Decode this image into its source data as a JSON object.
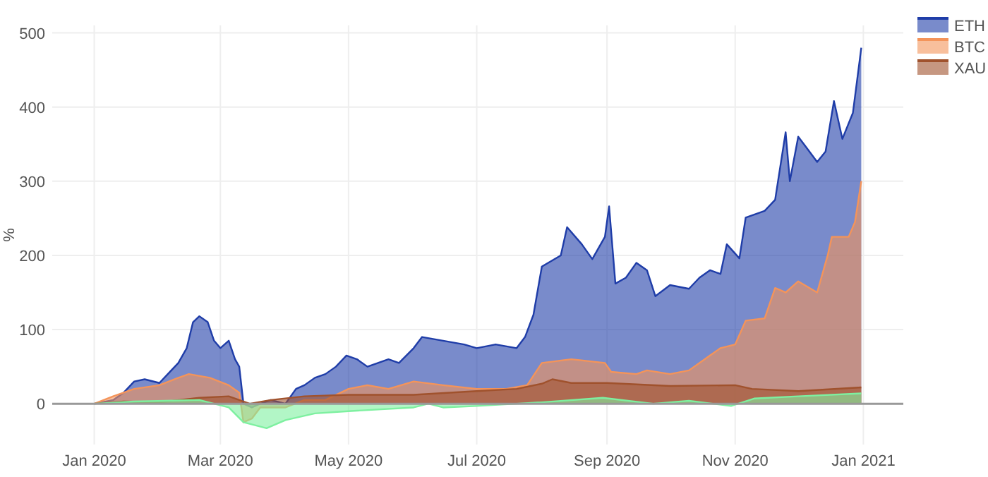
{
  "chart_data": {
    "type": "area",
    "ylabel": "%",
    "xlim": [
      "2019-12-12",
      "2021-01-20"
    ],
    "ylim": [
      -55,
      510
    ],
    "xticks": [
      {
        "value": "2020-01-01",
        "label": "Jan 2020"
      },
      {
        "value": "2020-03-01",
        "label": "Mar 2020"
      },
      {
        "value": "2020-05-01",
        "label": "May 2020"
      },
      {
        "value": "2020-07-01",
        "label": "Jul 2020"
      },
      {
        "value": "2020-09-01",
        "label": "Sep 2020"
      },
      {
        "value": "2020-11-01",
        "label": "Nov 2020"
      },
      {
        "value": "2021-01-01",
        "label": "Jan 2021"
      }
    ],
    "yticks": [
      0,
      100,
      200,
      300,
      400,
      500
    ],
    "grid": true,
    "legend": "top right",
    "line_style": "solid",
    "series": [
      {
        "name": "ETH",
        "color": "#1f3da8",
        "x": [
          "2020-01-01",
          "2020-01-10",
          "2020-01-15",
          "2020-01-20",
          "2020-01-25",
          "2020-02-01",
          "2020-02-05",
          "2020-02-10",
          "2020-02-14",
          "2020-02-17",
          "2020-02-20",
          "2020-02-24",
          "2020-02-27",
          "2020-03-01",
          "2020-03-05",
          "2020-03-08",
          "2020-03-10",
          "2020-03-12",
          "2020-03-16",
          "2020-03-20",
          "2020-03-25",
          "2020-04-01",
          "2020-04-06",
          "2020-04-10",
          "2020-04-15",
          "2020-04-20",
          "2020-04-25",
          "2020-04-30",
          "2020-05-05",
          "2020-05-10",
          "2020-05-15",
          "2020-05-20",
          "2020-05-25",
          "2020-06-01",
          "2020-06-05",
          "2020-06-15",
          "2020-06-25",
          "2020-07-01",
          "2020-07-10",
          "2020-07-20",
          "2020-07-24",
          "2020-07-28",
          "2020-08-01",
          "2020-08-10",
          "2020-08-13",
          "2020-08-20",
          "2020-08-25",
          "2020-08-31",
          "2020-09-02",
          "2020-09-05",
          "2020-09-10",
          "2020-09-15",
          "2020-09-20",
          "2020-09-24",
          "2020-10-01",
          "2020-10-10",
          "2020-10-15",
          "2020-10-20",
          "2020-10-25",
          "2020-10-28",
          "2020-11-03",
          "2020-11-06",
          "2020-11-15",
          "2020-11-20",
          "2020-11-25",
          "2020-11-27",
          "2020-12-01",
          "2020-12-05",
          "2020-12-10",
          "2020-12-14",
          "2020-12-18",
          "2020-12-22",
          "2020-12-27",
          "2020-12-31"
        ],
        "values": [
          0,
          5,
          15,
          30,
          33,
          28,
          40,
          55,
          75,
          110,
          118,
          110,
          85,
          75,
          85,
          60,
          50,
          0,
          -5,
          0,
          5,
          0,
          20,
          25,
          35,
          40,
          50,
          65,
          60,
          50,
          55,
          60,
          55,
          75,
          90,
          85,
          80,
          75,
          80,
          75,
          90,
          120,
          185,
          200,
          238,
          215,
          195,
          225,
          266,
          162,
          170,
          190,
          180,
          145,
          160,
          155,
          170,
          180,
          175,
          215,
          196,
          251,
          260,
          275,
          366,
          300,
          360,
          345,
          326,
          340,
          408,
          357,
          392,
          480
        ]
      },
      {
        "name": "BTC",
        "color": "#f4945a",
        "x": [
          "2020-01-01",
          "2020-01-10",
          "2020-01-20",
          "2020-02-01",
          "2020-02-10",
          "2020-02-15",
          "2020-02-25",
          "2020-03-05",
          "2020-03-10",
          "2020-03-12",
          "2020-03-16",
          "2020-03-20",
          "2020-04-01",
          "2020-04-10",
          "2020-04-20",
          "2020-05-01",
          "2020-05-10",
          "2020-05-20",
          "2020-06-01",
          "2020-06-15",
          "2020-07-01",
          "2020-07-15",
          "2020-07-25",
          "2020-08-01",
          "2020-08-15",
          "2020-08-31",
          "2020-09-03",
          "2020-09-15",
          "2020-09-20",
          "2020-10-01",
          "2020-10-10",
          "2020-10-20",
          "2020-10-25",
          "2020-11-01",
          "2020-11-06",
          "2020-11-15",
          "2020-11-20",
          "2020-11-25",
          "2020-12-01",
          "2020-12-10",
          "2020-12-15",
          "2020-12-17",
          "2020-12-25",
          "2020-12-28",
          "2020-12-31"
        ],
        "values": [
          0,
          10,
          20,
          25,
          35,
          40,
          35,
          25,
          15,
          -25,
          -20,
          -5,
          -5,
          5,
          5,
          20,
          25,
          20,
          30,
          25,
          20,
          20,
          25,
          55,
          60,
          55,
          43,
          40,
          45,
          40,
          45,
          65,
          75,
          80,
          112,
          115,
          156,
          150,
          165,
          150,
          200,
          225,
          225,
          245,
          300
        ]
      },
      {
        "name": "XAU",
        "color": "#a0522d",
        "x": [
          "2020-01-01",
          "2020-01-15",
          "2020-02-01",
          "2020-02-20",
          "2020-03-05",
          "2020-03-15",
          "2020-03-25",
          "2020-04-10",
          "2020-05-01",
          "2020-06-01",
          "2020-07-01",
          "2020-07-20",
          "2020-08-01",
          "2020-08-06",
          "2020-08-15",
          "2020-09-01",
          "2020-10-01",
          "2020-11-01",
          "2020-11-09",
          "2020-12-01",
          "2020-12-31"
        ],
        "values": [
          0,
          3,
          2,
          8,
          10,
          0,
          5,
          10,
          12,
          12,
          17,
          20,
          27,
          33,
          28,
          28,
          24,
          25,
          20,
          17,
          22
        ]
      },
      {
        "color": "#7ef0a0",
        "x": [
          "2020-01-01",
          "2020-01-20",
          "2020-02-20",
          "2020-03-05",
          "2020-03-12",
          "2020-03-23",
          "2020-04-01",
          "2020-04-15",
          "2020-05-01",
          "2020-06-01",
          "2020-06-08",
          "2020-06-15",
          "2020-07-01",
          "2020-07-20",
          "2020-08-01",
          "2020-08-30",
          "2020-09-23",
          "2020-10-10",
          "2020-10-30",
          "2020-11-10",
          "2020-12-01",
          "2020-12-31"
        ],
        "values": [
          0,
          3,
          5,
          -5,
          -25,
          -33,
          -22,
          -13,
          -10,
          -5,
          0,
          -5,
          -3,
          0,
          2,
          8,
          0,
          4,
          -3,
          7,
          10,
          14
        ]
      }
    ]
  }
}
